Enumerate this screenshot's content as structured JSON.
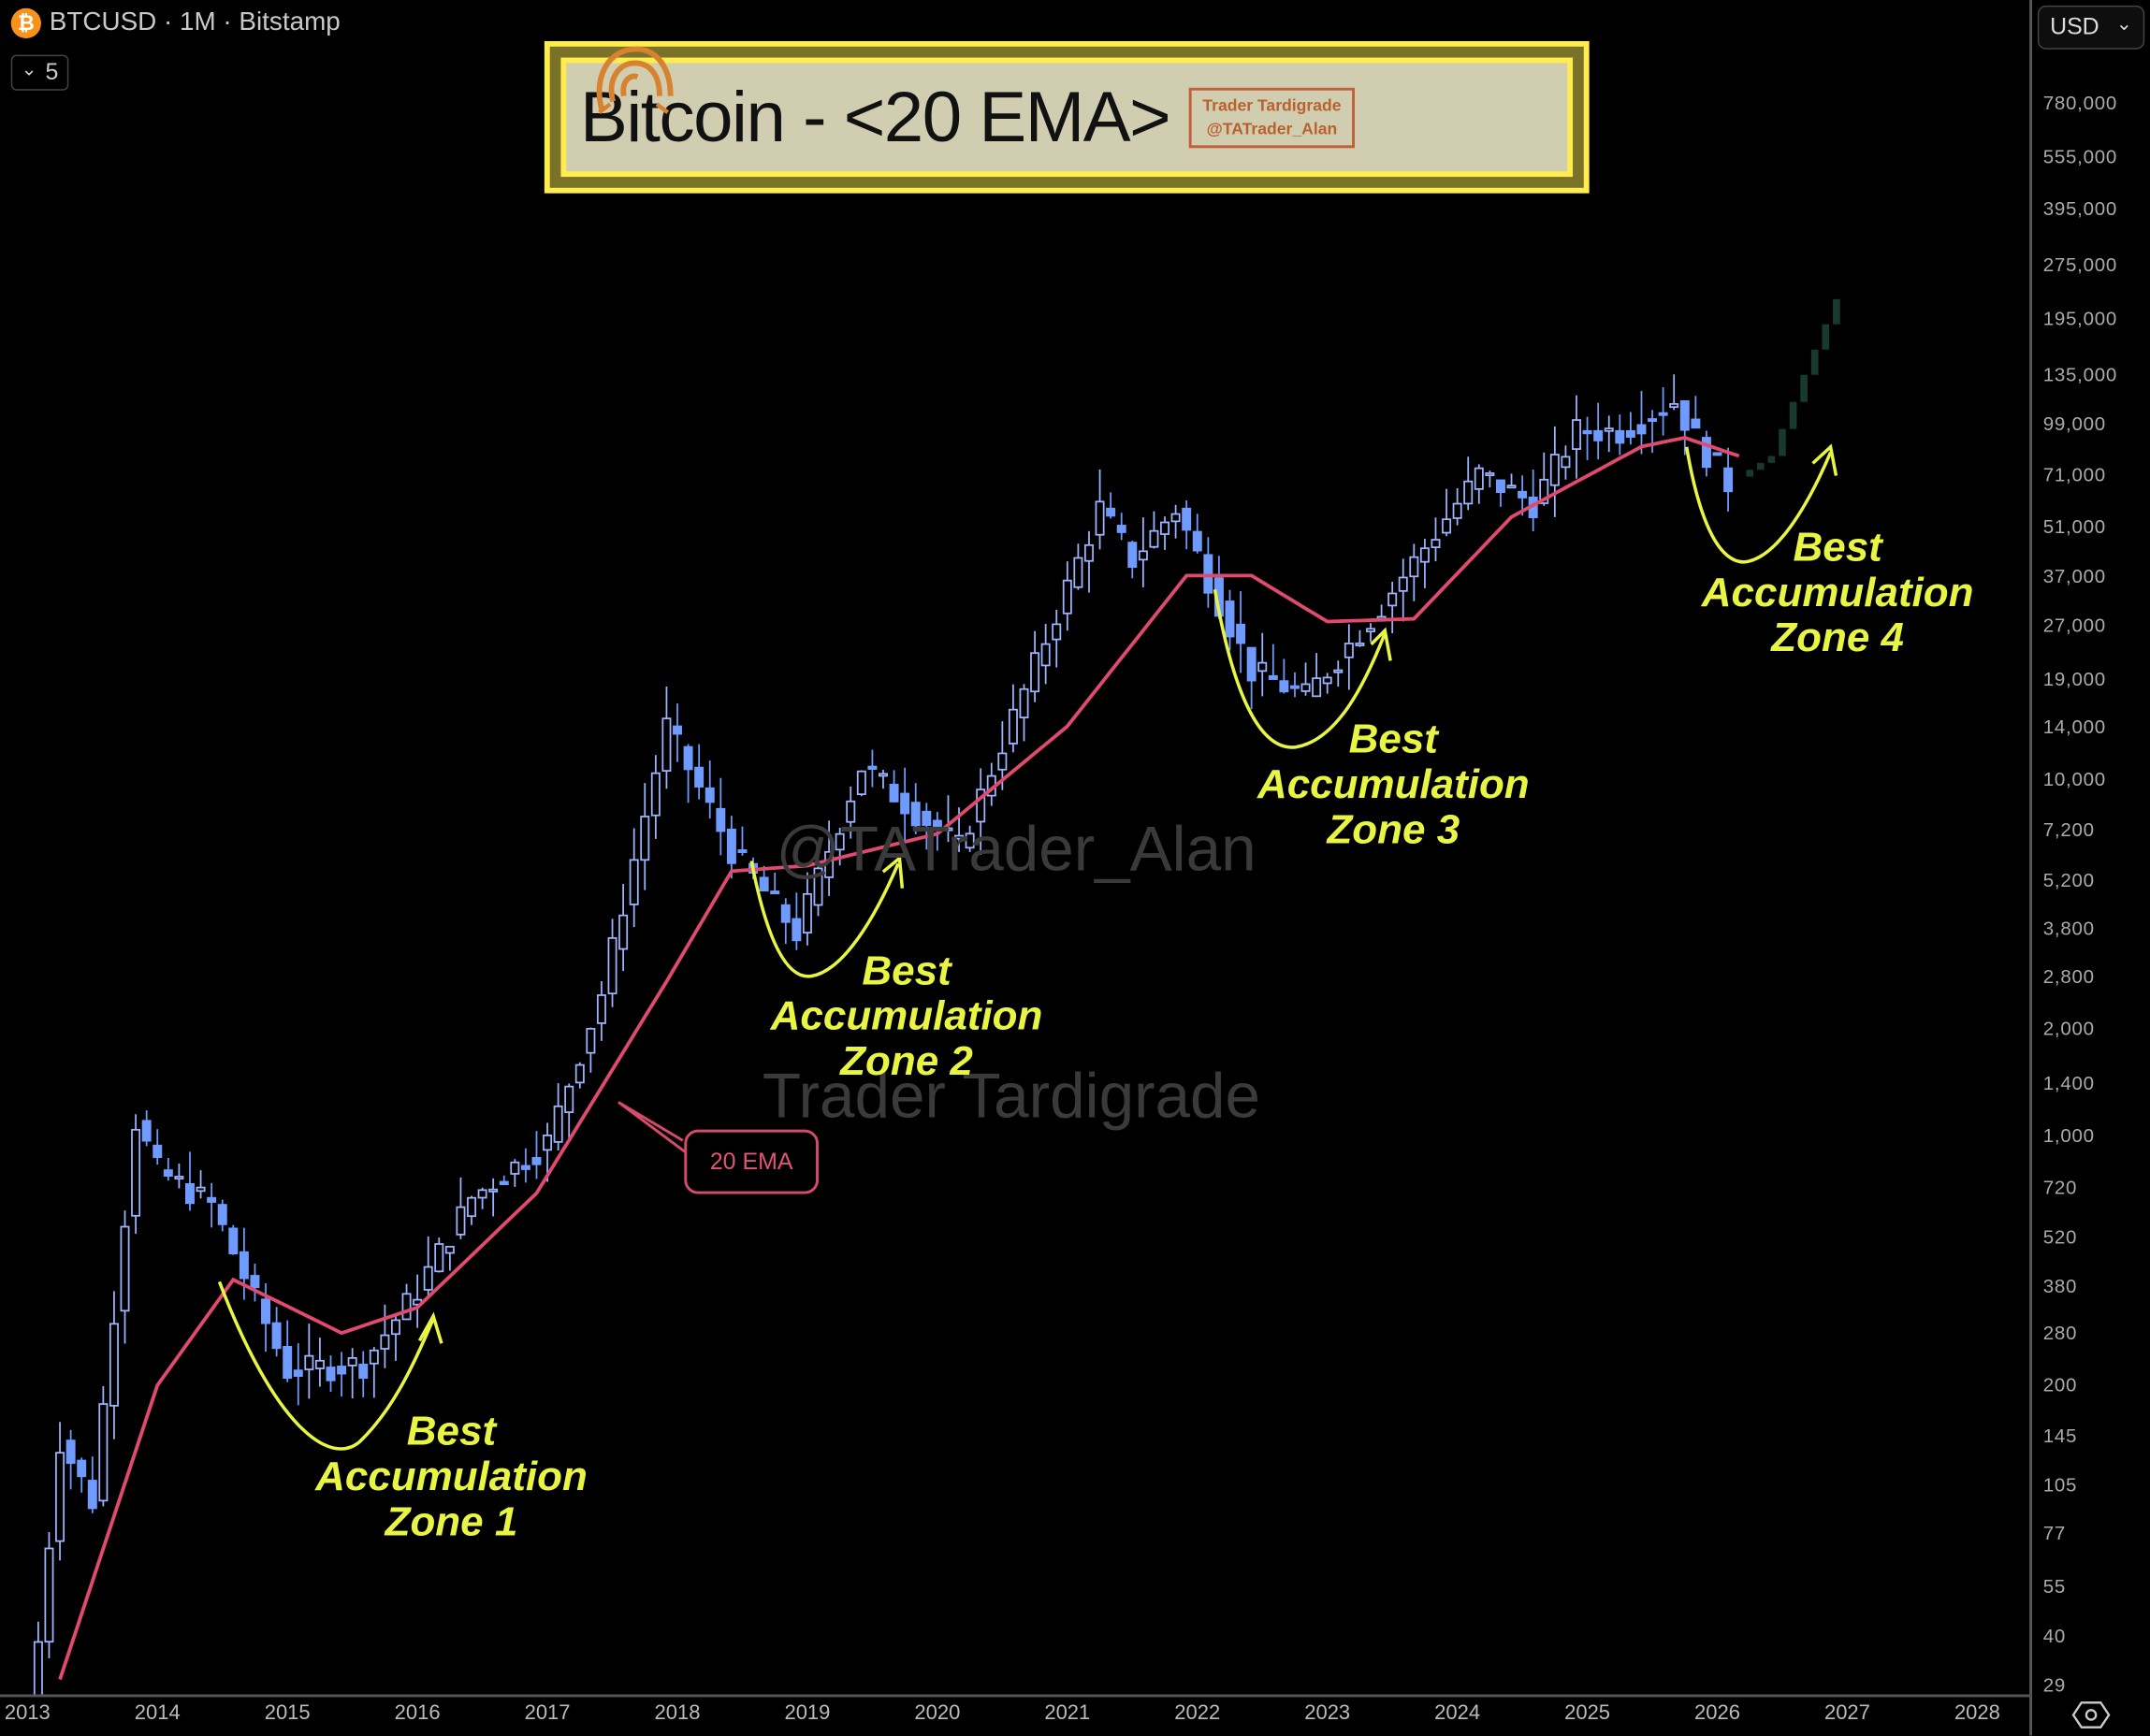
{
  "header": {
    "symbol": "BTCUSD · 1M · Bitstamp",
    "coin_glyph": "₿",
    "indicator_count": "5",
    "chevron": "⌄"
  },
  "title_box": {
    "title": "Bitcoin - <20 EMA>",
    "brand_line1": "Trader Tardigrade",
    "brand_line2": "@TATrader_Alan"
  },
  "currency": {
    "label": "USD",
    "chevron": "⌄"
  },
  "watermarks": {
    "handle": "@TATrader_Alan",
    "name": "Trader Tardigrade"
  },
  "ema_label": "20 EMA",
  "zones": [
    {
      "line1": "Best",
      "line2": "Accumulation",
      "line3": "Zone 1"
    },
    {
      "line1": "Best",
      "line2": "Accumulation",
      "line3": "Zone 2"
    },
    {
      "line1": "Best",
      "line2": "Accumulation",
      "line3": "Zone 3"
    },
    {
      "line1": "Best",
      "line2": "Accumulation",
      "line3": "Zone 4"
    }
  ],
  "colors": {
    "candle_up": "#9db4ff",
    "candle_down": "#6f9bff",
    "ema": "#e04a6e",
    "projection": "#183a2e",
    "annotation": "#e8f542",
    "title_border": "#ffec4f"
  },
  "chart_data": {
    "type": "candlestick",
    "title": "Bitcoin - <20 EMA>",
    "symbol": "BTCUSD",
    "interval": "1M",
    "exchange": "Bitstamp",
    "yscale": "log",
    "ylim": [
      29,
      1000000
    ],
    "y_ticks": [
      "780,000",
      "555,000",
      "395,000",
      "275,000",
      "195,000",
      "135,000",
      "99,000",
      "71,000",
      "51,000",
      "37,000",
      "27,000",
      "19,000",
      "14,000",
      "10,000",
      "7,200",
      "5,200",
      "3,800",
      "2,800",
      "2,000",
      "1,400",
      "1,000",
      "720",
      "520",
      "380",
      "280",
      "200",
      "145",
      "105",
      "77",
      "55",
      "40",
      "29"
    ],
    "x_ticks": [
      "2013",
      "2014",
      "2015",
      "2016",
      "2017",
      "2018",
      "2019",
      "2020",
      "2021",
      "2022",
      "2023",
      "2024",
      "2025",
      "2026",
      "2027",
      "2028"
    ],
    "series": [
      {
        "name": "BTCUSD candles (approx. monthly close)",
        "x": [
          "2013-01",
          "2013-04",
          "2013-07",
          "2013-11",
          "2014-01",
          "2014-06",
          "2015-01",
          "2015-08",
          "2016-01",
          "2016-06",
          "2017-01",
          "2017-06",
          "2017-12",
          "2018-06",
          "2018-12",
          "2019-06",
          "2020-03",
          "2020-12",
          "2021-04",
          "2021-07",
          "2021-11",
          "2022-06",
          "2022-11",
          "2023-06",
          "2024-03",
          "2024-08",
          "2024-12",
          "2025-04",
          "2025-09",
          "2025-11",
          "2026-02"
        ],
        "values": [
          20,
          140,
          95,
          1100,
          800,
          640,
          220,
          230,
          370,
          670,
          960,
          2500,
          14000,
          6300,
          3700,
          10800,
          6400,
          29000,
          57000,
          41000,
          57000,
          20000,
          17000,
          30500,
          71000,
          59000,
          94000,
          94000,
          114000,
          90000,
          67000
        ]
      },
      {
        "name": "20 EMA (approx.)",
        "x": [
          "2013-04",
          "2014-01",
          "2014-08",
          "2015-06",
          "2016-01",
          "2016-12",
          "2017-12",
          "2018-06",
          "2019-01",
          "2020-01",
          "2021-01",
          "2021-12",
          "2022-06",
          "2023-01",
          "2023-09",
          "2024-06",
          "2025-06",
          "2025-10",
          "2026-03"
        ],
        "values": [
          30,
          200,
          395,
          280,
          330,
          690,
          2700,
          5500,
          5700,
          7000,
          14000,
          37000,
          37000,
          27500,
          28000,
          54000,
          85000,
          90000,
          80000
        ]
      },
      {
        "name": "Projection (dark green)",
        "x": [
          "2026-03",
          "2026-06",
          "2026-09",
          "2026-12"
        ],
        "values": [
          70000,
          80000,
          135000,
          220000
        ]
      }
    ],
    "annotations": [
      "Best Accumulation Zone 1",
      "Best Accumulation Zone 2",
      "Best Accumulation Zone 3",
      "Best Accumulation Zone 4",
      "20 EMA"
    ]
  }
}
